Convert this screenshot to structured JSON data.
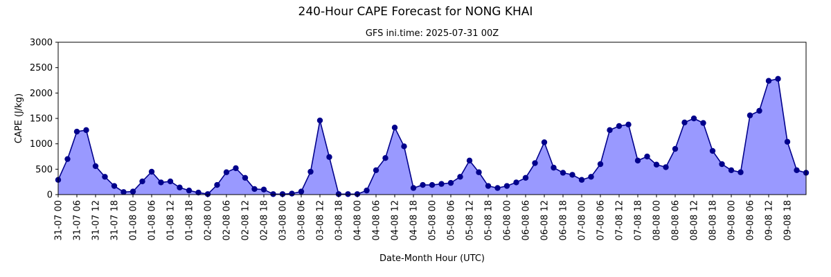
{
  "chart_data": {
    "type": "area",
    "title": "240-Hour CAPE Forecast for NONG KHAI",
    "subtitle": "GFS ini.time: 2025-07-31 00Z",
    "xlabel": "Date-Month Hour (UTC)",
    "ylabel": "CAPE (J/kg)",
    "ylim": [
      0,
      3000
    ],
    "yticks": [
      0,
      500,
      1000,
      1500,
      2000,
      2500,
      3000
    ],
    "grid": false,
    "step_hours": 3,
    "xtick_labels": [
      "31-07 00",
      "31-07 06",
      "31-07 12",
      "31-07 18",
      "01-08 00",
      "01-08 06",
      "01-08 12",
      "01-08 18",
      "02-08 00",
      "02-08 06",
      "02-08 12",
      "02-08 18",
      "03-08 00",
      "03-08 06",
      "03-08 12",
      "03-08 18",
      "04-08 00",
      "04-08 06",
      "04-08 12",
      "04-08 18",
      "05-08 00",
      "05-08 06",
      "05-08 12",
      "05-08 18",
      "06-08 00",
      "06-08 06",
      "06-08 12",
      "06-08 18",
      "07-08 00",
      "07-08 06",
      "07-08 12",
      "07-08 18",
      "08-08 00",
      "08-08 06",
      "08-08 12",
      "08-08 18",
      "09-08 00",
      "09-08 06",
      "09-08 12",
      "09-08 18"
    ],
    "series": [
      {
        "line_color": "#00008b",
        "fill_color": "#9999ff",
        "values": [
          290,
          700,
          1240,
          1270,
          560,
          350,
          170,
          50,
          60,
          260,
          450,
          240,
          260,
          140,
          80,
          40,
          10,
          190,
          440,
          520,
          330,
          110,
          100,
          10,
          10,
          20,
          60,
          450,
          1460,
          740,
          10,
          10,
          10,
          80,
          480,
          720,
          1320,
          950,
          130,
          190,
          190,
          210,
          230,
          350,
          670,
          440,
          170,
          130,
          170,
          240,
          330,
          620,
          1030,
          530,
          430,
          390,
          290,
          350,
          600,
          1270,
          1350,
          1380,
          670,
          750,
          590,
          540,
          900,
          1420,
          1500,
          1410,
          860,
          600,
          480,
          440,
          1560,
          1650,
          2240,
          2280,
          1040,
          480,
          430
        ]
      }
    ]
  }
}
